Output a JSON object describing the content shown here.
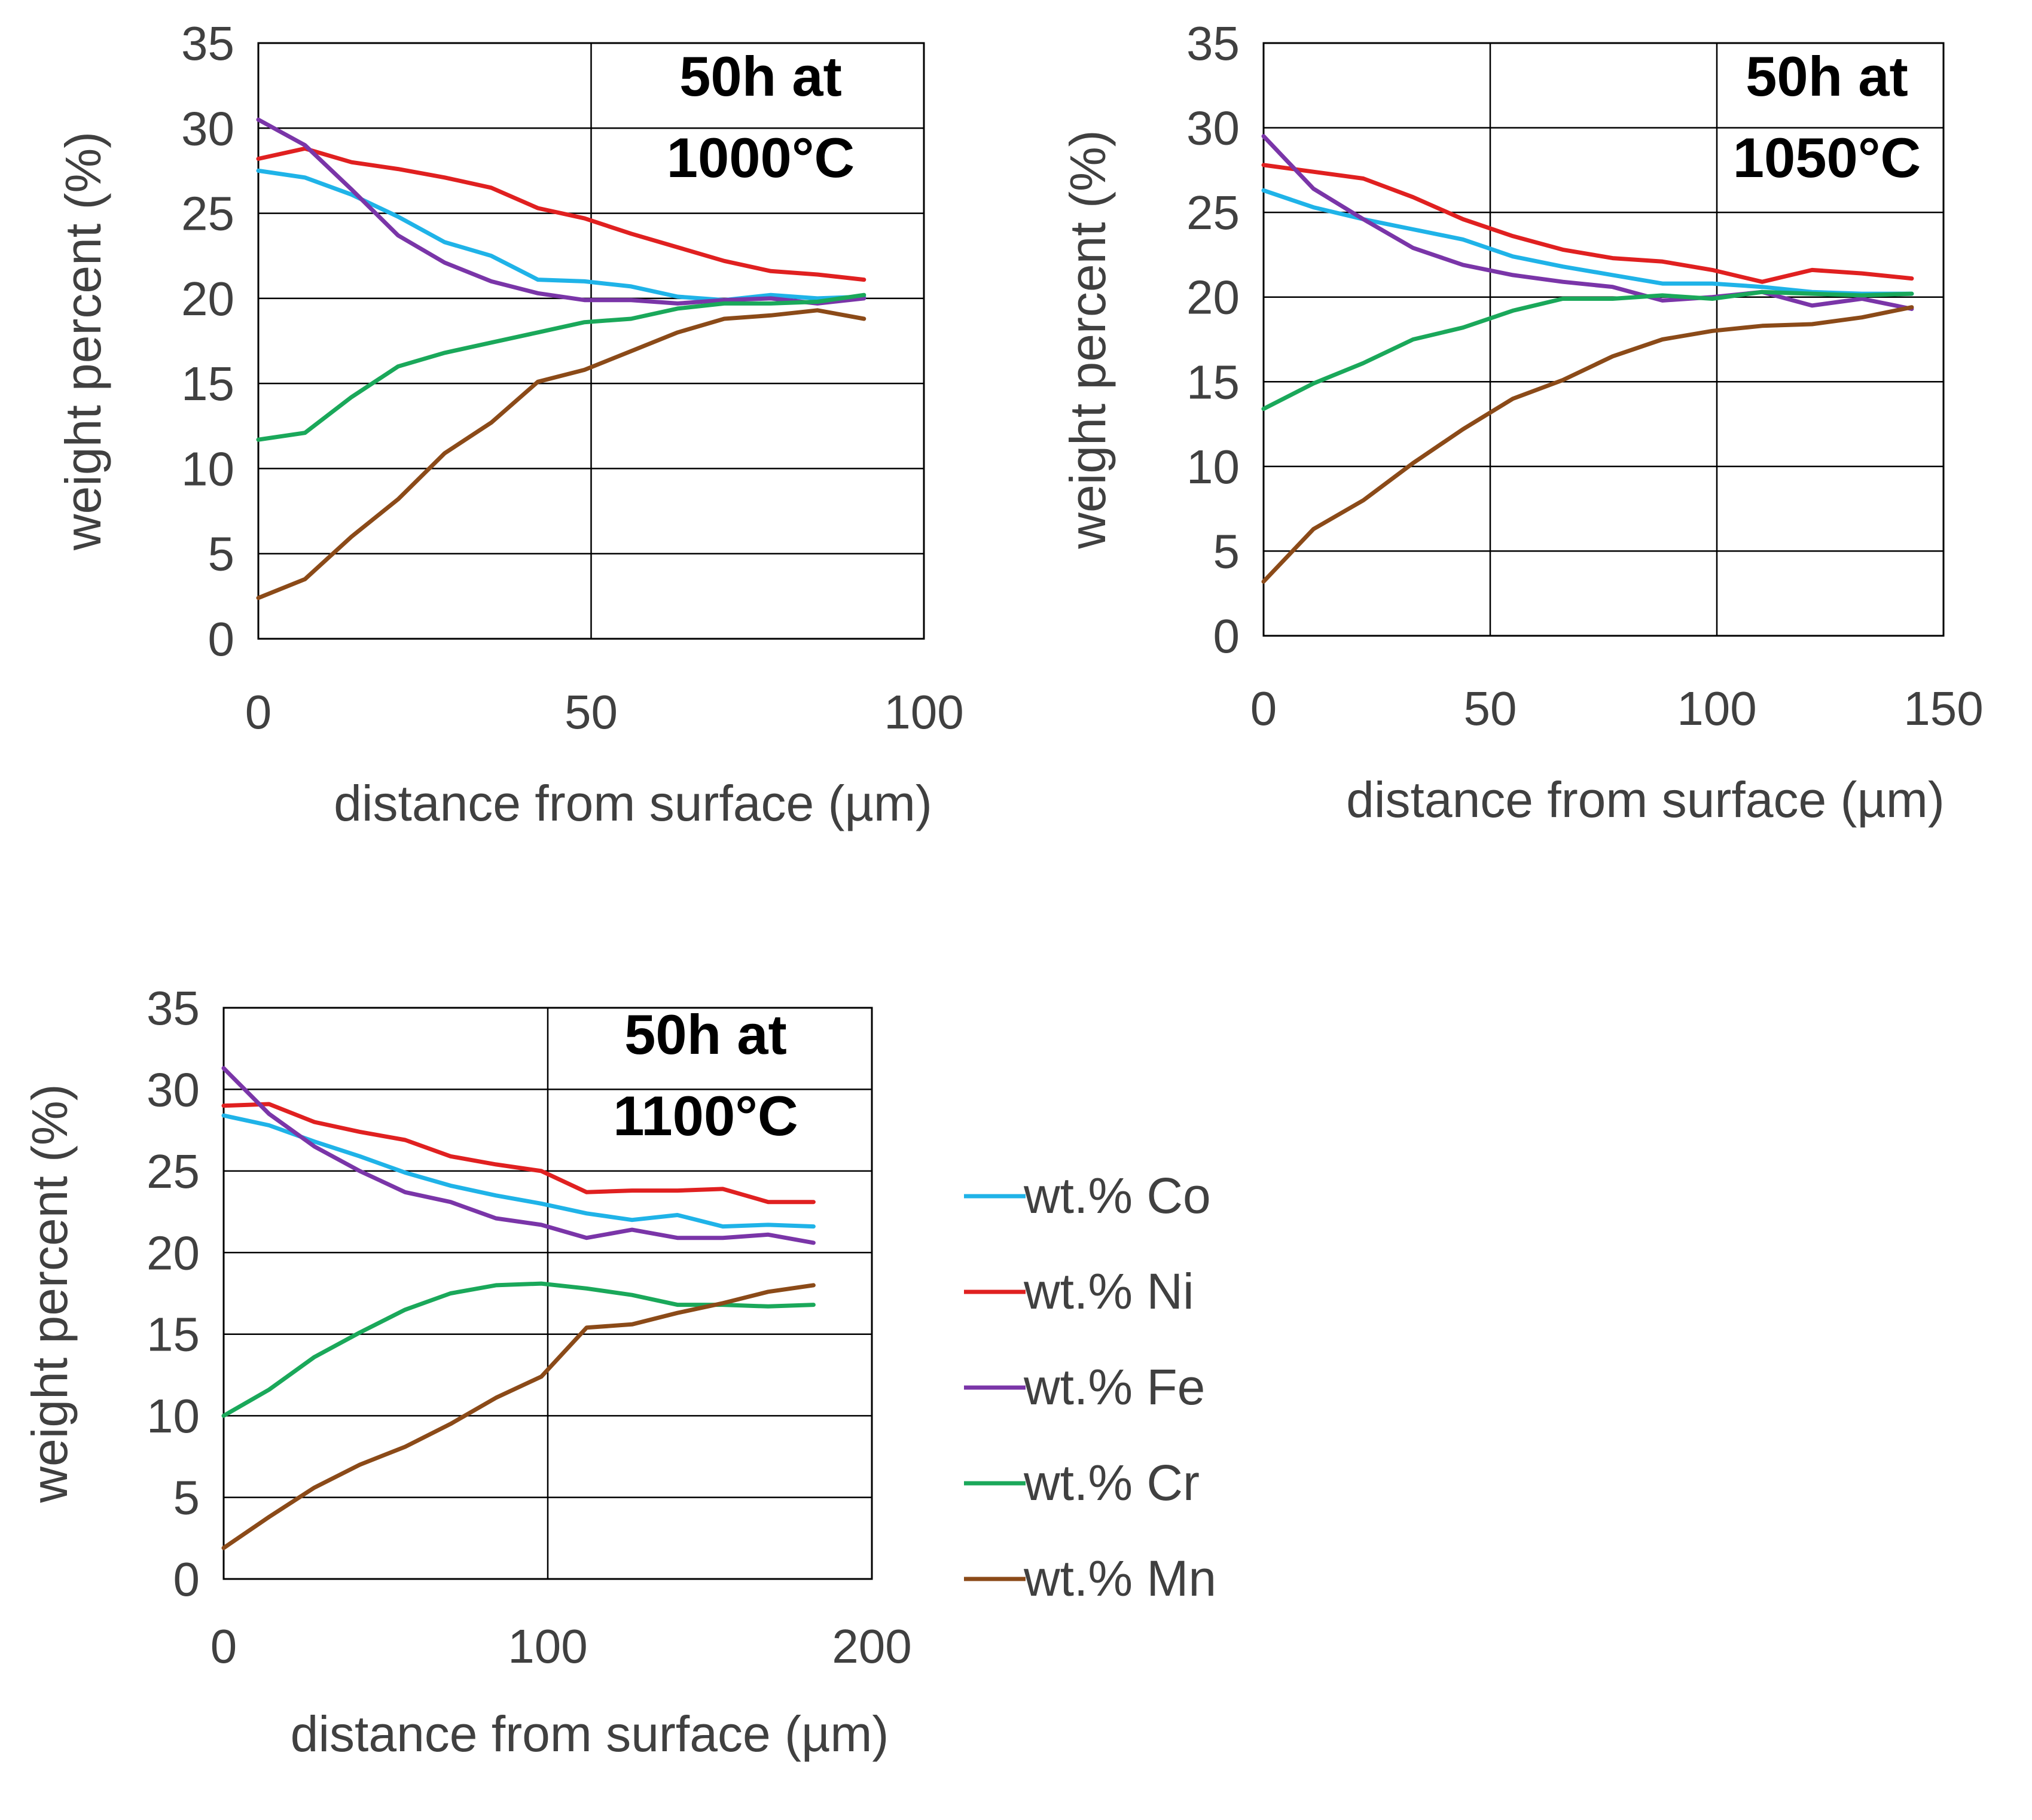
{
  "legend": [
    {
      "label": "wt.% Co",
      "color": "#1fb3e8"
    },
    {
      "label": "wt.% Ni",
      "color": "#e02020"
    },
    {
      "label": "wt.% Fe",
      "color": "#7a35a8"
    },
    {
      "label": "wt.% Cr",
      "color": "#1aa85a"
    },
    {
      "label": "wt.% Mn",
      "color": "#8b4a18"
    }
  ],
  "chart_data": [
    {
      "type": "line",
      "annotation": [
        "50h at",
        "1000°C"
      ],
      "xlabel": "distance from surface (µm)",
      "ylabel": "weight percent (%)",
      "xlim": [
        0,
        100
      ],
      "ylim": [
        0,
        35
      ],
      "xticks": [
        0,
        50,
        100
      ],
      "yticks": [
        0,
        5,
        10,
        15,
        20,
        25,
        30,
        35
      ],
      "x": [
        0,
        7,
        14,
        21,
        28,
        35,
        42,
        49,
        56,
        63,
        70,
        77,
        84,
        91
      ],
      "series": [
        {
          "name": "wt.% Co",
          "values": [
            27.5,
            27.1,
            26.1,
            24.8,
            23.3,
            22.5,
            21.1,
            21.0,
            20.7,
            20.1,
            19.9,
            20.2,
            20.0,
            20.1
          ]
        },
        {
          "name": "wt.% Ni",
          "values": [
            28.2,
            28.8,
            28.0,
            27.6,
            27.1,
            26.5,
            25.3,
            24.7,
            23.8,
            23.0,
            22.2,
            21.6,
            21.4,
            21.1
          ]
        },
        {
          "name": "wt.% Fe",
          "values": [
            30.5,
            29.0,
            26.4,
            23.7,
            22.1,
            21.0,
            20.3,
            19.9,
            19.9,
            19.7,
            19.9,
            20.0,
            19.7,
            20.0
          ]
        },
        {
          "name": "wt.% Cr",
          "values": [
            11.7,
            12.1,
            14.2,
            16.0,
            16.8,
            17.4,
            18.0,
            18.6,
            18.8,
            19.4,
            19.7,
            19.7,
            19.8,
            20.2
          ]
        },
        {
          "name": "wt.% Mn",
          "values": [
            2.4,
            3.5,
            6.0,
            8.2,
            10.9,
            12.7,
            15.1,
            15.8,
            16.9,
            18.0,
            18.8,
            19.0,
            19.3,
            18.8
          ]
        }
      ]
    },
    {
      "type": "line",
      "annotation": [
        "50h at",
        "1050°C"
      ],
      "xlabel": "distance from surface (µm)",
      "ylabel": "weight percent (%)",
      "xlim": [
        0,
        150
      ],
      "ylim": [
        0,
        35
      ],
      "xticks": [
        0,
        50,
        100,
        150
      ],
      "yticks": [
        0,
        5,
        10,
        15,
        20,
        25,
        30,
        35
      ],
      "x": [
        0,
        11,
        22,
        33,
        44,
        55,
        66,
        77,
        88,
        99,
        110,
        121,
        132,
        143
      ],
      "series": [
        {
          "name": "wt.% Co",
          "values": [
            26.3,
            25.3,
            24.6,
            24.0,
            23.4,
            22.4,
            21.8,
            21.3,
            20.8,
            20.8,
            20.6,
            20.3,
            20.2,
            20.2
          ]
        },
        {
          "name": "wt.% Ni",
          "values": [
            27.8,
            27.4,
            27.0,
            25.9,
            24.6,
            23.6,
            22.8,
            22.3,
            22.1,
            21.6,
            20.9,
            21.6,
            21.4,
            21.1
          ]
        },
        {
          "name": "wt.% Fe",
          "values": [
            29.5,
            26.4,
            24.6,
            22.9,
            21.9,
            21.3,
            20.9,
            20.6,
            19.8,
            20.0,
            20.3,
            19.5,
            19.9,
            19.3
          ]
        },
        {
          "name": "wt.% Cr",
          "values": [
            13.4,
            14.9,
            16.1,
            17.5,
            18.2,
            19.2,
            19.9,
            19.9,
            20.1,
            19.9,
            20.3,
            20.2,
            20.1,
            20.2
          ]
        },
        {
          "name": "wt.% Mn",
          "values": [
            3.2,
            6.3,
            8.0,
            10.2,
            12.2,
            14.0,
            15.1,
            16.5,
            17.5,
            18.0,
            18.3,
            18.4,
            18.8,
            19.4
          ]
        }
      ]
    },
    {
      "type": "line",
      "annotation": [
        "50h at",
        "1100°C"
      ],
      "xlabel": "distance from surface (µm)",
      "ylabel": "weight percent (%)",
      "xlim": [
        0,
        200
      ],
      "ylim": [
        0,
        35
      ],
      "xticks": [
        0,
        100,
        200
      ],
      "yticks": [
        0,
        5,
        10,
        15,
        20,
        25,
        30,
        35
      ],
      "x": [
        0,
        14,
        28,
        42,
        56,
        70,
        84,
        98,
        112,
        126,
        140,
        154,
        168,
        182
      ],
      "series": [
        {
          "name": "wt.% Co",
          "values": [
            28.4,
            27.8,
            26.8,
            25.9,
            24.9,
            24.1,
            23.5,
            23.0,
            22.4,
            22.0,
            22.3,
            21.6,
            21.7,
            21.6
          ]
        },
        {
          "name": "wt.% Ni",
          "values": [
            29.0,
            29.1,
            28.0,
            27.4,
            26.9,
            25.9,
            25.4,
            25.0,
            23.7,
            23.8,
            23.8,
            23.9,
            23.1,
            23.1
          ]
        },
        {
          "name": "wt.% Fe",
          "values": [
            31.3,
            28.5,
            26.5,
            25.0,
            23.7,
            23.1,
            22.1,
            21.7,
            20.9,
            21.4,
            20.9,
            20.9,
            21.1,
            20.6
          ]
        },
        {
          "name": "wt.% Cr",
          "values": [
            10.0,
            11.6,
            13.6,
            15.1,
            16.5,
            17.5,
            18.0,
            18.1,
            17.8,
            17.4,
            16.8,
            16.8,
            16.7,
            16.8
          ]
        },
        {
          "name": "wt.% Mn",
          "values": [
            1.9,
            3.8,
            5.6,
            7.0,
            8.1,
            9.5,
            11.1,
            12.4,
            15.4,
            15.6,
            16.3,
            16.9,
            17.6,
            18.0
          ]
        }
      ]
    }
  ]
}
